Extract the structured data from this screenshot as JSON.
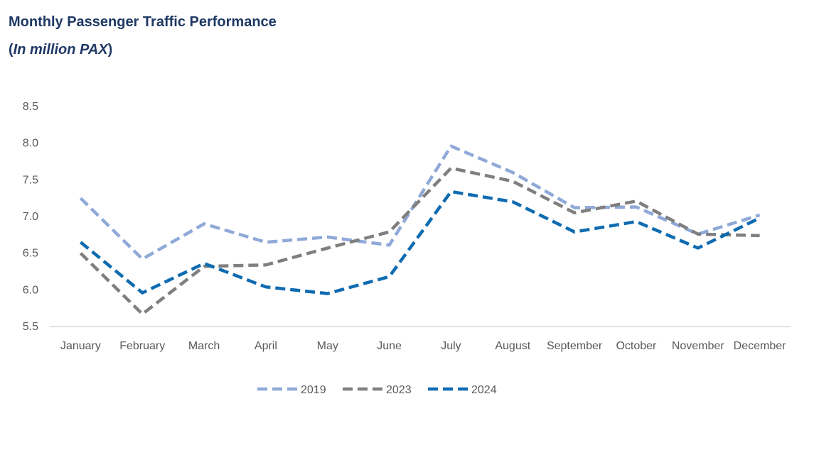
{
  "chart_data": {
    "type": "line",
    "title": "Monthly Passenger Traffic Performance",
    "subtitle_open": "(",
    "subtitle_unit": "In million PAX",
    "subtitle_close": ")",
    "categories": [
      "January",
      "February",
      "March",
      "April",
      "May",
      "June",
      "July",
      "August",
      "September",
      "October",
      "November",
      "December"
    ],
    "yticks": [
      "5.5",
      "6.0",
      "6.5",
      "7.0",
      "7.5",
      "8.0",
      "8.5"
    ],
    "ylim": [
      5.5,
      8.5
    ],
    "grid": false,
    "legend_position": "bottom",
    "series": [
      {
        "name": "2019",
        "color": "#8fa9d8",
        "values": [
          7.25,
          6.42,
          6.9,
          6.65,
          6.72,
          6.61,
          7.96,
          7.6,
          7.12,
          7.13,
          6.76,
          7.02
        ]
      },
      {
        "name": "2023",
        "color": "#7f7f7f",
        "values": [
          6.5,
          5.67,
          6.32,
          6.34,
          6.57,
          6.79,
          7.66,
          7.48,
          7.05,
          7.21,
          6.76,
          6.74
        ]
      },
      {
        "name": "2024",
        "color": "#0e6bb0",
        "values": [
          6.65,
          5.96,
          6.36,
          6.04,
          5.95,
          6.18,
          7.34,
          7.2,
          6.79,
          6.93,
          6.57,
          6.98
        ]
      }
    ]
  }
}
